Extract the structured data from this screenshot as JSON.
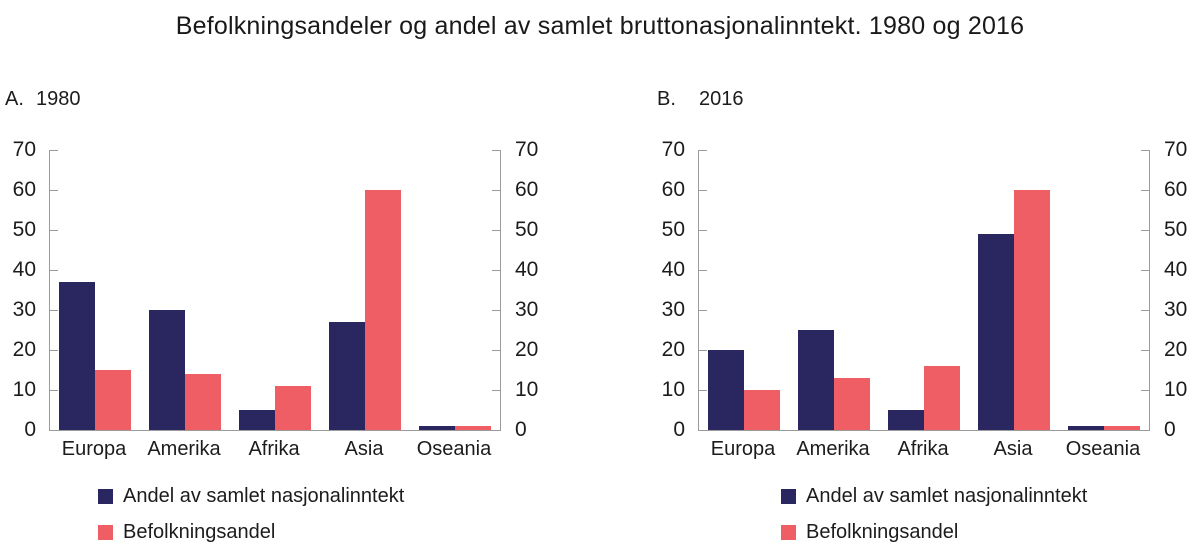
{
  "title": "Befolkningsandeler og andel av samlet bruttonasjonalinntekt. 1980 og 2016",
  "colors": {
    "series_income": "#2a265f",
    "series_population": "#ef5d65",
    "axis": "#9b9b9b",
    "text": "#1c1c1c"
  },
  "chart_data": [
    {
      "type": "bar",
      "label": "A.",
      "year": "1980",
      "categories": [
        "Europa",
        "Amerika",
        "Afrika",
        "Asia",
        "Oseania"
      ],
      "series": [
        {
          "name": "Andel av samlet nasjonalinntekt",
          "color": "#2a265f",
          "values": [
            37,
            30,
            5,
            27,
            1
          ]
        },
        {
          "name": "Befolkningsandel",
          "color": "#ef5d65",
          "values": [
            15,
            14,
            11,
            60,
            1
          ]
        }
      ],
      "ylim": [
        0,
        70
      ],
      "yticks": [
        0,
        10,
        20,
        30,
        40,
        50,
        60,
        70
      ],
      "grid": false,
      "dual_y_axis": true,
      "legend_position": "bottom"
    },
    {
      "type": "bar",
      "label": "B.",
      "year": "2016",
      "categories": [
        "Europa",
        "Amerika",
        "Afrika",
        "Asia",
        "Oseania"
      ],
      "series": [
        {
          "name": "Andel av samlet nasjonalinntekt",
          "color": "#2a265f",
          "values": [
            20,
            25,
            5,
            49,
            1
          ]
        },
        {
          "name": "Befolkningsandel",
          "color": "#ef5d65",
          "values": [
            10,
            13,
            16,
            60,
            1
          ]
        }
      ],
      "ylim": [
        0,
        70
      ],
      "yticks": [
        0,
        10,
        20,
        30,
        40,
        50,
        60,
        70
      ],
      "grid": false,
      "dual_y_axis": true,
      "legend_position": "bottom"
    }
  ]
}
